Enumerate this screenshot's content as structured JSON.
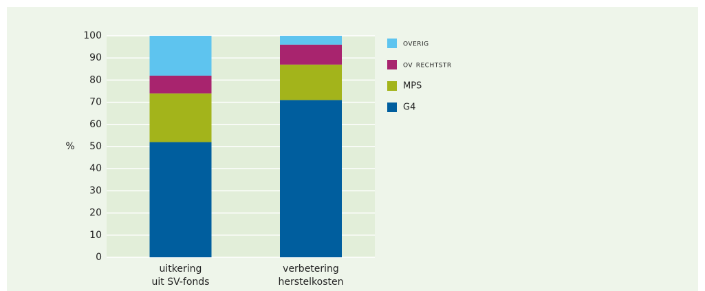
{
  "chart_data": {
    "type": "stacked_bar",
    "ylabel": "%",
    "categories": [
      "uitkering uit SV-fonds",
      "verbetering herstelkosten"
    ],
    "series": [
      {
        "name": "G4",
        "color": "#005e9e",
        "values": [
          52,
          71
        ]
      },
      {
        "name": "MPS",
        "color": "#a3b41b",
        "values": [
          22,
          16
        ]
      },
      {
        "name": "ov rechtstr",
        "color": "#a8246e",
        "values": [
          8,
          9
        ]
      },
      {
        "name": "overig",
        "color": "#5ec4ef",
        "values": [
          18,
          4
        ]
      }
    ],
    "ylim": [
      0,
      100
    ],
    "yticks": [
      0,
      10,
      20,
      30,
      40,
      50,
      60,
      70,
      80,
      90,
      100
    ],
    "grid": true,
    "legend": "right"
  }
}
